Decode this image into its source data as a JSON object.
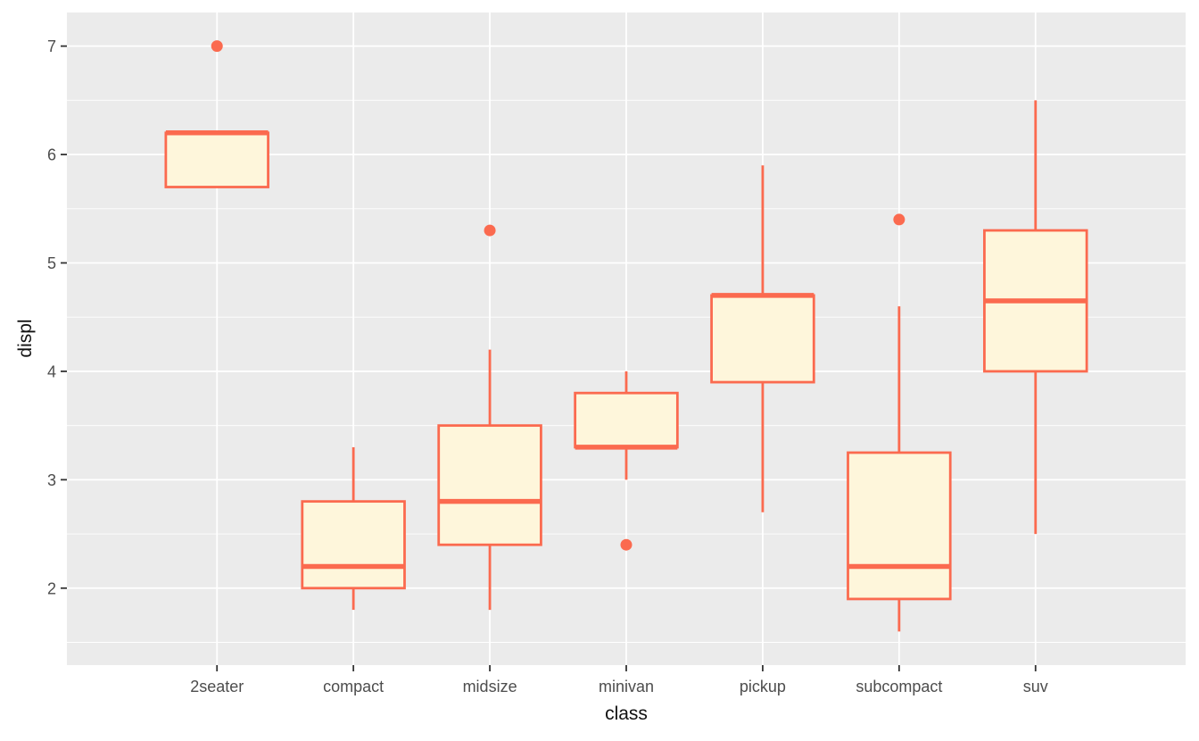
{
  "chart_data": {
    "type": "boxplot",
    "title": "",
    "xlabel": "class",
    "ylabel": "displ",
    "categories": [
      "2seater",
      "compact",
      "midsize",
      "minivan",
      "pickup",
      "subcompact",
      "suv"
    ],
    "boxes": [
      {
        "class": "2seater",
        "whisker_low": 5.7,
        "q1": 5.7,
        "median": 6.2,
        "q3": 6.2,
        "whisker_high": 6.2,
        "outliers": [
          7.0
        ]
      },
      {
        "class": "compact",
        "whisker_low": 1.8,
        "q1": 2.0,
        "median": 2.2,
        "q3": 2.8,
        "whisker_high": 3.3,
        "outliers": []
      },
      {
        "class": "midsize",
        "whisker_low": 1.8,
        "q1": 2.4,
        "median": 2.8,
        "q3": 3.5,
        "whisker_high": 4.2,
        "outliers": [
          5.3
        ]
      },
      {
        "class": "minivan",
        "whisker_low": 3.0,
        "q1": 3.3,
        "median": 3.3,
        "q3": 3.8,
        "whisker_high": 4.0,
        "outliers": [
          2.4
        ]
      },
      {
        "class": "pickup",
        "whisker_low": 2.7,
        "q1": 3.9,
        "median": 4.7,
        "q3": 4.7,
        "whisker_high": 5.9,
        "outliers": []
      },
      {
        "class": "subcompact",
        "whisker_low": 1.6,
        "q1": 1.9,
        "median": 2.2,
        "q3": 3.25,
        "whisker_high": 4.6,
        "outliers": [
          5.4
        ]
      },
      {
        "class": "suv",
        "whisker_low": 2.5,
        "q1": 4.0,
        "median": 4.65,
        "q3": 5.3,
        "whisker_high": 6.5,
        "outliers": []
      }
    ],
    "y_ticks_major": [
      2,
      3,
      4,
      5,
      6,
      7
    ],
    "y_ticks_minor": [
      1.5,
      2.5,
      3.5,
      4.5,
      5.5,
      6.5
    ],
    "ylim": [
      1.29,
      7.31
    ],
    "grid": "horizontal major+minor, vertical major at category centers",
    "legend": "none",
    "colors": {
      "box_stroke": "#FB6A4F",
      "box_fill": "#FEF6DB",
      "outlier": "#FB6A4F",
      "panel_bg": "#EBEBEB",
      "gridline": "#FFFFFF",
      "tick_label": "#4D4D4D",
      "axis_title": "#111111",
      "tick_mark": "#333333",
      "page_bg": "#FFFFFF"
    }
  }
}
